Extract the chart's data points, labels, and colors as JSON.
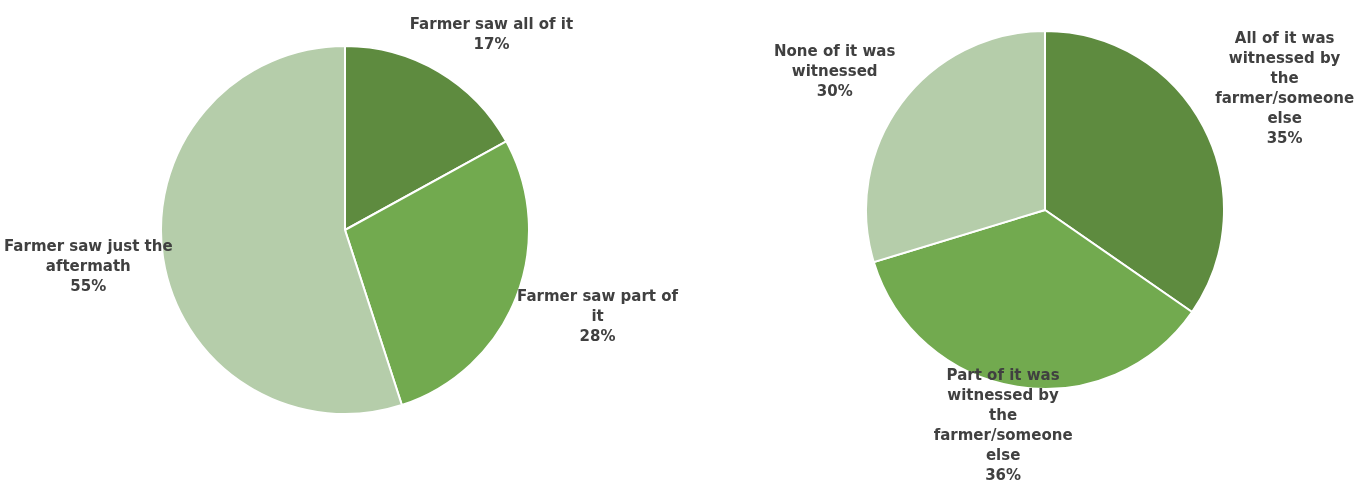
{
  "chart_data": [
    {
      "type": "pie",
      "categories": [
        "Farmer saw all of it",
        "Farmer saw part of it",
        "Farmer saw just the aftermath"
      ],
      "values": [
        17,
        28,
        55
      ],
      "value_labels": [
        "17%",
        "28%",
        "55%"
      ],
      "colors": [
        "#5e8b3f",
        "#72aa4f",
        "#b5cdaa"
      ],
      "legend": false
    },
    {
      "type": "pie",
      "categories": [
        "All of it was witnessed by the farmer/someone else",
        "Part of it was witnessed by the farmer/someone else",
        "None of it was witnessed"
      ],
      "values": [
        35,
        36,
        30
      ],
      "value_labels": [
        "35%",
        "36%",
        "30%"
      ],
      "colors": [
        "#5e8b3f",
        "#72aa4f",
        "#b5cdaa"
      ],
      "legend": false
    }
  ]
}
